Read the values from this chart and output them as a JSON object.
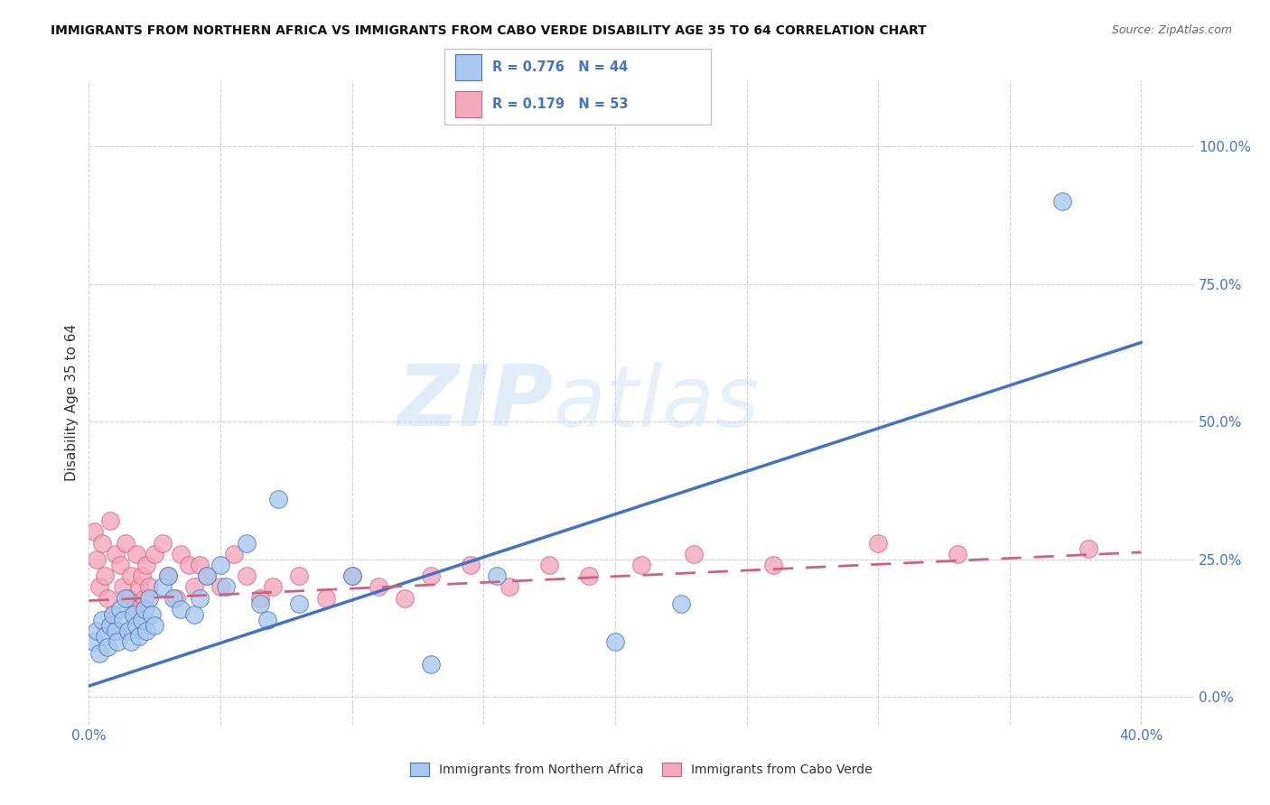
{
  "title": "IMMIGRANTS FROM NORTHERN AFRICA VS IMMIGRANTS FROM CABO VERDE DISABILITY AGE 35 TO 64 CORRELATION CHART",
  "source": "Source: ZipAtlas.com",
  "ylabel": "Disability Age 35 to 64",
  "xlim": [
    0.0,
    0.42
  ],
  "ylim": [
    -0.05,
    1.12
  ],
  "yticks": [
    0.0,
    0.25,
    0.5,
    0.75,
    1.0
  ],
  "ytick_labels": [
    "0.0%",
    "25.0%",
    "50.0%",
    "75.0%",
    "100.0%"
  ],
  "xticks": [
    0.0,
    0.05,
    0.1,
    0.15,
    0.2,
    0.25,
    0.3,
    0.35,
    0.4
  ],
  "color_blue": "#A8C8EE",
  "color_pink": "#F4A8BC",
  "color_blue_line": "#4472C4",
  "color_pink_line": "#D06080",
  "watermark_zip": "ZIP",
  "watermark_atlas": "atlas",
  "background": "#FFFFFF",
  "grid_color": "#D0D0D0",
  "blue_slope": 1.56,
  "blue_intercept": 0.02,
  "pink_slope": 0.22,
  "pink_intercept": 0.175,
  "blue_scatter_x": [
    0.002,
    0.003,
    0.004,
    0.005,
    0.006,
    0.007,
    0.008,
    0.009,
    0.01,
    0.011,
    0.012,
    0.013,
    0.014,
    0.015,
    0.016,
    0.017,
    0.018,
    0.019,
    0.02,
    0.021,
    0.022,
    0.023,
    0.024,
    0.025,
    0.028,
    0.03,
    0.032,
    0.035,
    0.04,
    0.042,
    0.045,
    0.05,
    0.052,
    0.06,
    0.065,
    0.068,
    0.072,
    0.08,
    0.1,
    0.13,
    0.155,
    0.2,
    0.225,
    0.37
  ],
  "blue_scatter_y": [
    0.1,
    0.12,
    0.08,
    0.14,
    0.11,
    0.09,
    0.13,
    0.15,
    0.12,
    0.1,
    0.16,
    0.14,
    0.18,
    0.12,
    0.1,
    0.15,
    0.13,
    0.11,
    0.14,
    0.16,
    0.12,
    0.18,
    0.15,
    0.13,
    0.2,
    0.22,
    0.18,
    0.16,
    0.15,
    0.18,
    0.22,
    0.24,
    0.2,
    0.28,
    0.17,
    0.14,
    0.36,
    0.17,
    0.22,
    0.06,
    0.22,
    0.1,
    0.17,
    0.9
  ],
  "pink_scatter_x": [
    0.002,
    0.003,
    0.004,
    0.005,
    0.006,
    0.007,
    0.008,
    0.009,
    0.01,
    0.011,
    0.012,
    0.013,
    0.014,
    0.015,
    0.016,
    0.017,
    0.018,
    0.019,
    0.02,
    0.021,
    0.022,
    0.023,
    0.025,
    0.028,
    0.03,
    0.033,
    0.035,
    0.038,
    0.04,
    0.042,
    0.045,
    0.05,
    0.055,
    0.06,
    0.065,
    0.07,
    0.08,
    0.09,
    0.1,
    0.11,
    0.12,
    0.13,
    0.145,
    0.16,
    0.175,
    0.19,
    0.21,
    0.23,
    0.26,
    0.3,
    0.33,
    0.38
  ],
  "pink_scatter_y": [
    0.3,
    0.25,
    0.2,
    0.28,
    0.22,
    0.18,
    0.32,
    0.15,
    0.26,
    0.12,
    0.24,
    0.2,
    0.28,
    0.18,
    0.22,
    0.16,
    0.26,
    0.2,
    0.22,
    0.18,
    0.24,
    0.2,
    0.26,
    0.28,
    0.22,
    0.18,
    0.26,
    0.24,
    0.2,
    0.24,
    0.22,
    0.2,
    0.26,
    0.22,
    0.18,
    0.2,
    0.22,
    0.18,
    0.22,
    0.2,
    0.18,
    0.22,
    0.24,
    0.2,
    0.24,
    0.22,
    0.24,
    0.26,
    0.24,
    0.28,
    0.26,
    0.27
  ]
}
